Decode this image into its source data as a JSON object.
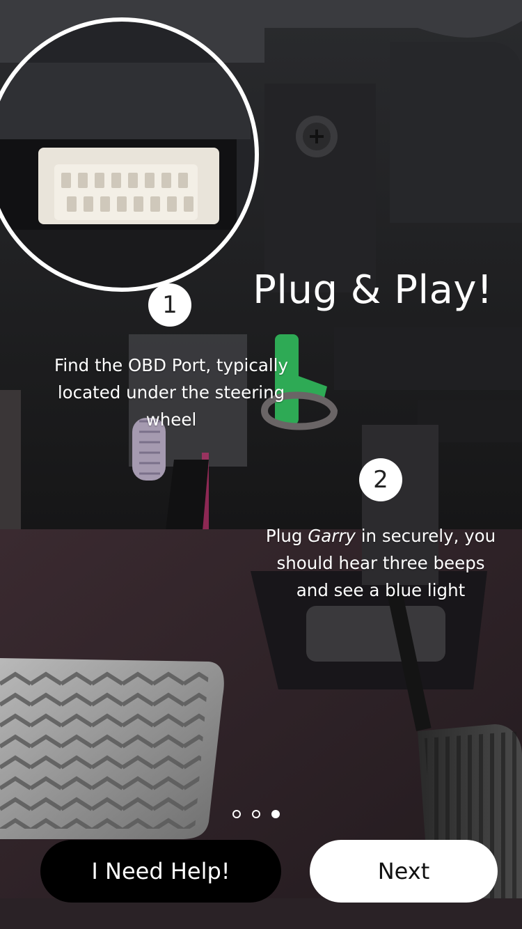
{
  "screen": {
    "title": "Plug & Play!"
  },
  "steps": [
    {
      "number": "1",
      "text": "Find the OBD Port, typically located under the steering wheel"
    },
    {
      "number": "2",
      "text_before": "Plug ",
      "text_emphasis": "Garry",
      "text_after": " in securely, you should hear three beeps and see a blue light"
    }
  ],
  "pagination": {
    "total": 3,
    "current": 3
  },
  "buttons": {
    "help_label": "I Need Help!",
    "next_label": "Next"
  },
  "colors": {
    "overlay_text": "#ffffff",
    "help_button_bg": "#000000",
    "next_button_bg": "#ffffff"
  }
}
